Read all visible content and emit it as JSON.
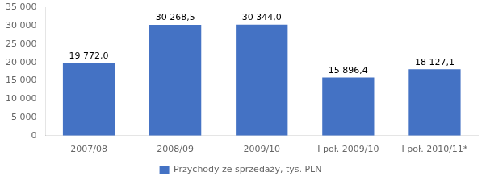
{
  "chart_data": {
    "type": "bar",
    "categories": [
      "2007/08",
      "2008/09",
      "2009/10",
      "I poł. 2009/10",
      "I poł. 2010/11*"
    ],
    "series": [
      {
        "name": "Przychody ze sprzedaży, tys. PLN",
        "color": "#4472C4",
        "values": [
          19772.0,
          30268.5,
          30344.0,
          15896.4,
          18127.1
        ],
        "value_labels": [
          "19 772,0",
          "30 268,5",
          "30 344,0",
          "15 896,4",
          "18 127,1"
        ]
      }
    ],
    "data_labels": true,
    "ylim": [
      0,
      35000
    ],
    "yticks": [
      0,
      {
        "value": 5000,
        "label": "5 000"
      },
      {
        "value": 10000,
        "label": "10 000"
      },
      {
        "value": 15000,
        "label": "15 000"
      },
      {
        "value": 20000,
        "label": "20 000"
      },
      {
        "value": 25000,
        "label": "25 000"
      },
      {
        "value": 30000,
        "label": "30 000"
      },
      {
        "value": 35000,
        "label": "35 000"
      }
    ],
    "grid": false,
    "legend": "bottom"
  }
}
